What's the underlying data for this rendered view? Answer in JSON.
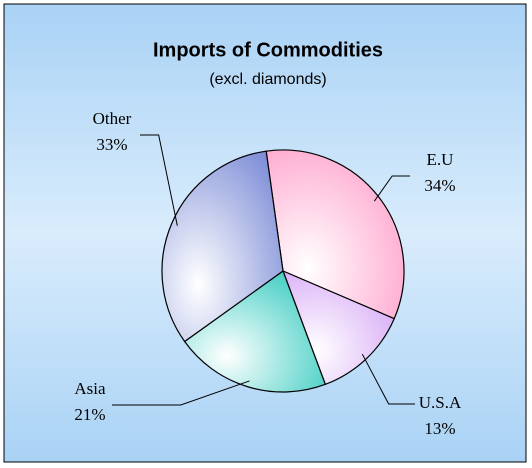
{
  "chart_data": {
    "type": "pie",
    "title": "Imports of Commodities",
    "subtitle": "(excl. diamonds)",
    "categories": [
      "E.U",
      "U.S.A",
      "Asia",
      "Other"
    ],
    "values": [
      34,
      13,
      21,
      33
    ],
    "value_labels": [
      "34%",
      "13%",
      "21%",
      "33%"
    ],
    "colors": [
      "#ff9cc8",
      "#d4a3f5",
      "#2ec9bd",
      "#7a8ad6"
    ]
  }
}
